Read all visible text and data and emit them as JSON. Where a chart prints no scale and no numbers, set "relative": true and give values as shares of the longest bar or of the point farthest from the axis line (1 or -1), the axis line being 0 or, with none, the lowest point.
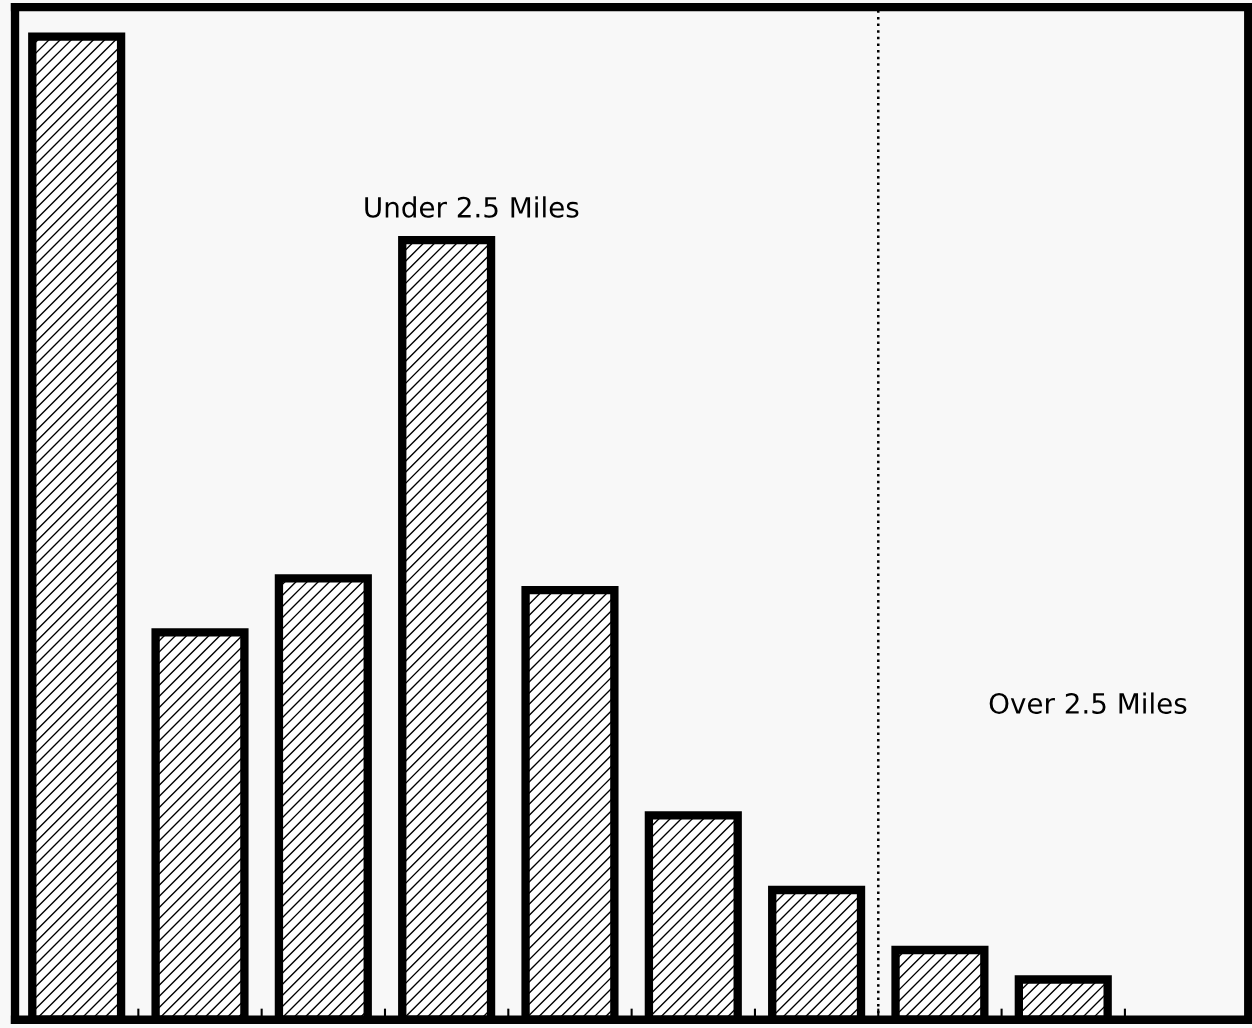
{
  "chart_data": {
    "type": "bar",
    "relative": true,
    "categories": [
      null,
      null,
      null,
      null,
      null,
      null,
      null,
      null,
      null
    ],
    "values": [
      1,
      0.394,
      0.449,
      0.793,
      0.437,
      0.208,
      0.132,
      0.071,
      0.041
    ],
    "color": "#ffffff",
    "annotations": [
      "Under 2.5 Miles",
      "Over 2.5 Miles"
    ],
    "grid": false,
    "legend": false
  }
}
